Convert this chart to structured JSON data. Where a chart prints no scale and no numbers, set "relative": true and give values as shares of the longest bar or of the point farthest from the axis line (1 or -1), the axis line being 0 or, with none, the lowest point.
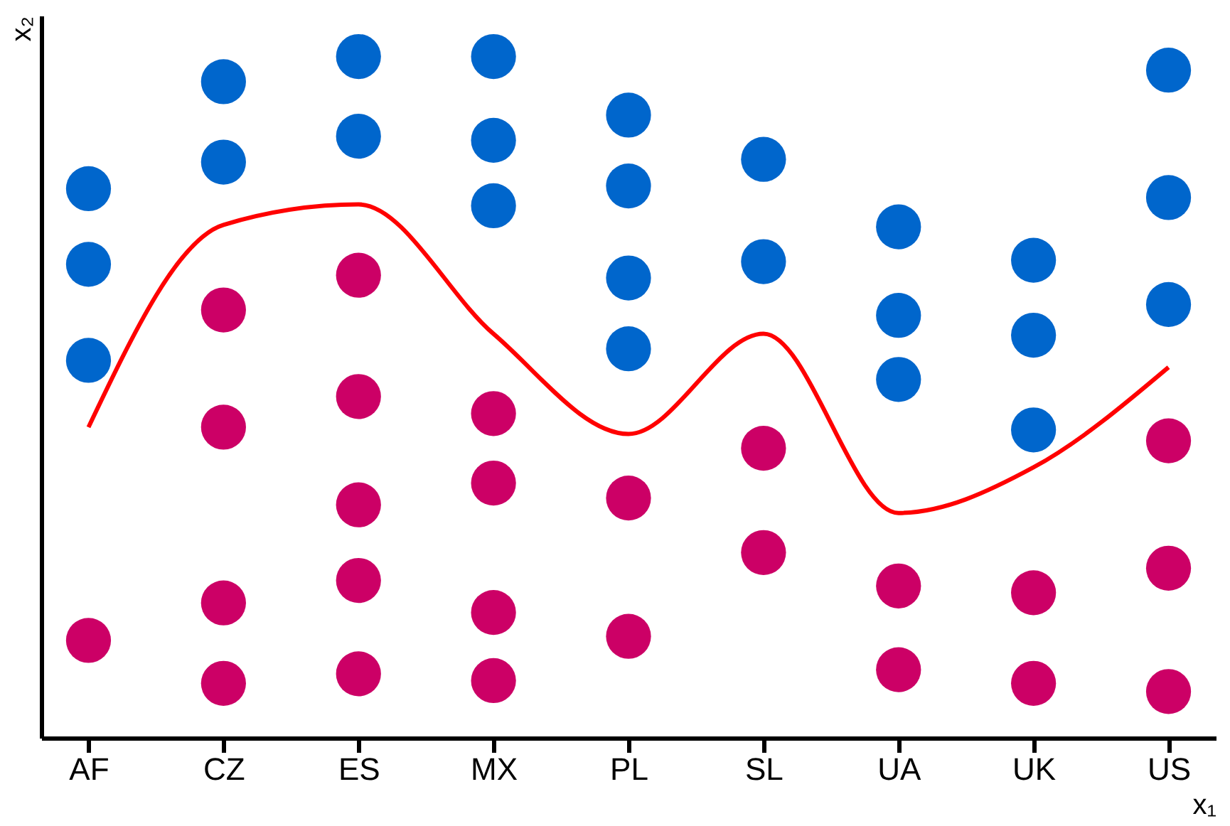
{
  "chart_data": {
    "type": "scatter",
    "relative": true,
    "xlabel": "x₁",
    "ylabel": "x₂",
    "marker": "circle",
    "grid": false,
    "tick_labels": "x",
    "categories": [
      "AF",
      "CZ",
      "ES",
      "MX",
      "PL",
      "SL",
      "UA",
      "UK",
      "US"
    ],
    "series": [
      {
        "color": "#0066cc",
        "x": [
          "AF",
          "AF",
          "AF",
          "CZ",
          "CZ",
          "ES",
          "ES",
          "MX",
          "MX",
          "MX",
          "PL",
          "PL",
          "PL",
          "PL",
          "SL",
          "SL",
          "UA",
          "UA",
          "UA",
          "UK",
          "UK",
          "UK",
          "US",
          "US",
          "US"
        ],
        "values": [
          0.806,
          0.695,
          0.554,
          0.963,
          0.845,
          1.0,
          0.883,
          1.0,
          0.877,
          0.781,
          0.914,
          0.81,
          0.675,
          0.571,
          0.849,
          0.699,
          0.75,
          0.62,
          0.526,
          0.701,
          0.591,
          0.452,
          0.98,
          0.793,
          0.636
        ]
      },
      {
        "color": "#cc0066",
        "x": [
          "AF",
          "CZ",
          "CZ",
          "CZ",
          "CZ",
          "ES",
          "ES",
          "ES",
          "ES",
          "ES",
          "MX",
          "MX",
          "MX",
          "MX",
          "PL",
          "PL",
          "SL",
          "SL",
          "UA",
          "UA",
          "UK",
          "UK",
          "US",
          "US",
          "US"
        ],
        "values": [
          0.143,
          0.628,
          0.456,
          0.198,
          0.08,
          0.679,
          0.501,
          0.342,
          0.231,
          0.094,
          0.476,
          0.374,
          0.184,
          0.084,
          0.352,
          0.149,
          0.425,
          0.272,
          0.223,
          0.1,
          0.213,
          0.08,
          0.436,
          0.249,
          0.068
        ]
      },
      {
        "type": "line",
        "color": "#ff0000",
        "marker": "none",
        "line_style": "solid",
        "values": [
          0.456,
          0.753,
          0.783,
          0.593,
          0.446,
          0.593,
          0.33,
          0.397,
          0.544
        ]
      }
    ]
  }
}
